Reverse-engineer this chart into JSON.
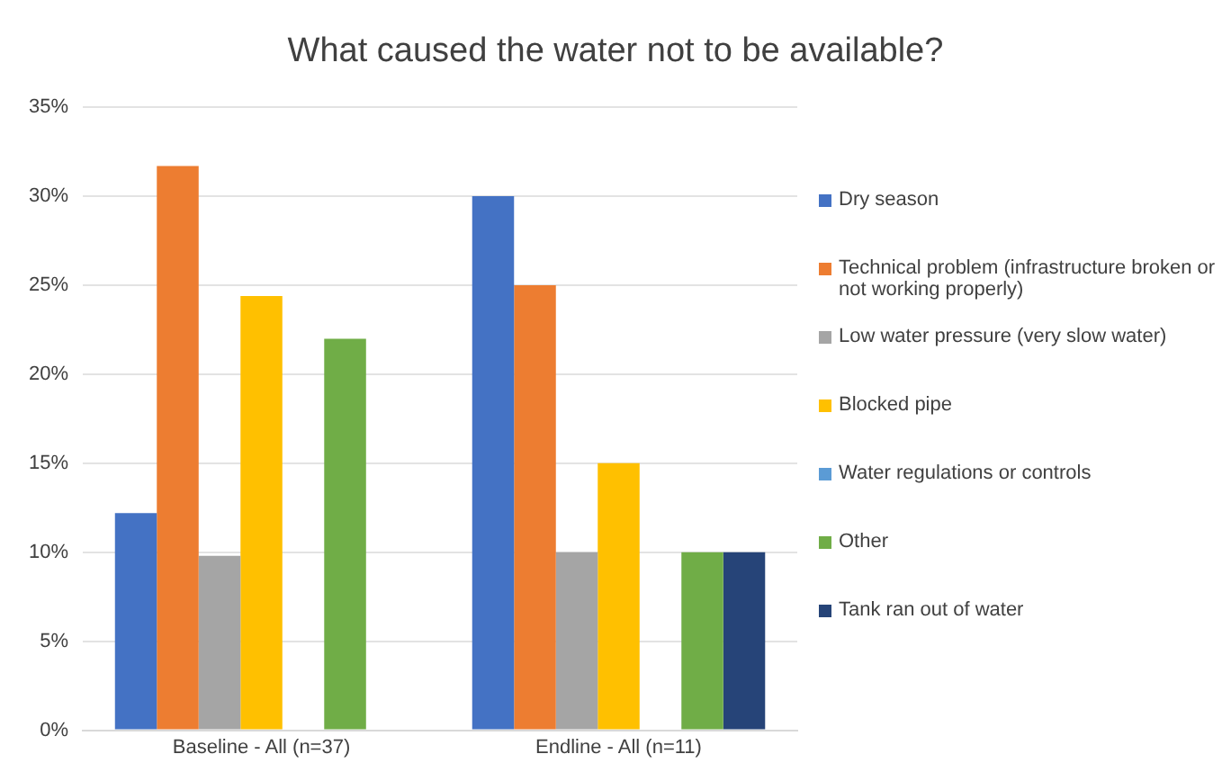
{
  "chart_data": {
    "type": "bar",
    "title": "What caused the water not to be available?",
    "categories": [
      "Baseline - All (n=37)",
      "Endline - All (n=11)"
    ],
    "series": [
      {
        "name": "Dry season",
        "color": "#4472c4",
        "values": [
          12.2,
          30
        ]
      },
      {
        "name": "Technical problem (infrastructure broken or not working properly)",
        "color": "#ed7d31",
        "values": [
          31.7,
          25
        ]
      },
      {
        "name": "Low water pressure (very slow water)",
        "color": "#a5a5a5",
        "values": [
          9.8,
          10
        ]
      },
      {
        "name": "Blocked pipe",
        "color": "#ffc000",
        "values": [
          24.4,
          15
        ]
      },
      {
        "name": "Water regulations or controls",
        "color": "#5b9bd5",
        "values": [
          0,
          0
        ]
      },
      {
        "name": "Other",
        "color": "#70ad47",
        "values": [
          22,
          10
        ]
      },
      {
        "name": "Tank ran out of water",
        "color": "#264478",
        "values": [
          0,
          10
        ]
      }
    ],
    "ylim": [
      0,
      35
    ],
    "yticks": [
      {
        "value": 0,
        "label": "0%"
      },
      {
        "value": 5,
        "label": "5%"
      },
      {
        "value": 10,
        "label": "10%"
      },
      {
        "value": 15,
        "label": "15%"
      },
      {
        "value": 20,
        "label": "20%"
      },
      {
        "value": 25,
        "label": "25%"
      },
      {
        "value": 30,
        "label": "30%"
      },
      {
        "value": 35,
        "label": "35%"
      }
    ],
    "grid": "y",
    "legend": "right"
  }
}
